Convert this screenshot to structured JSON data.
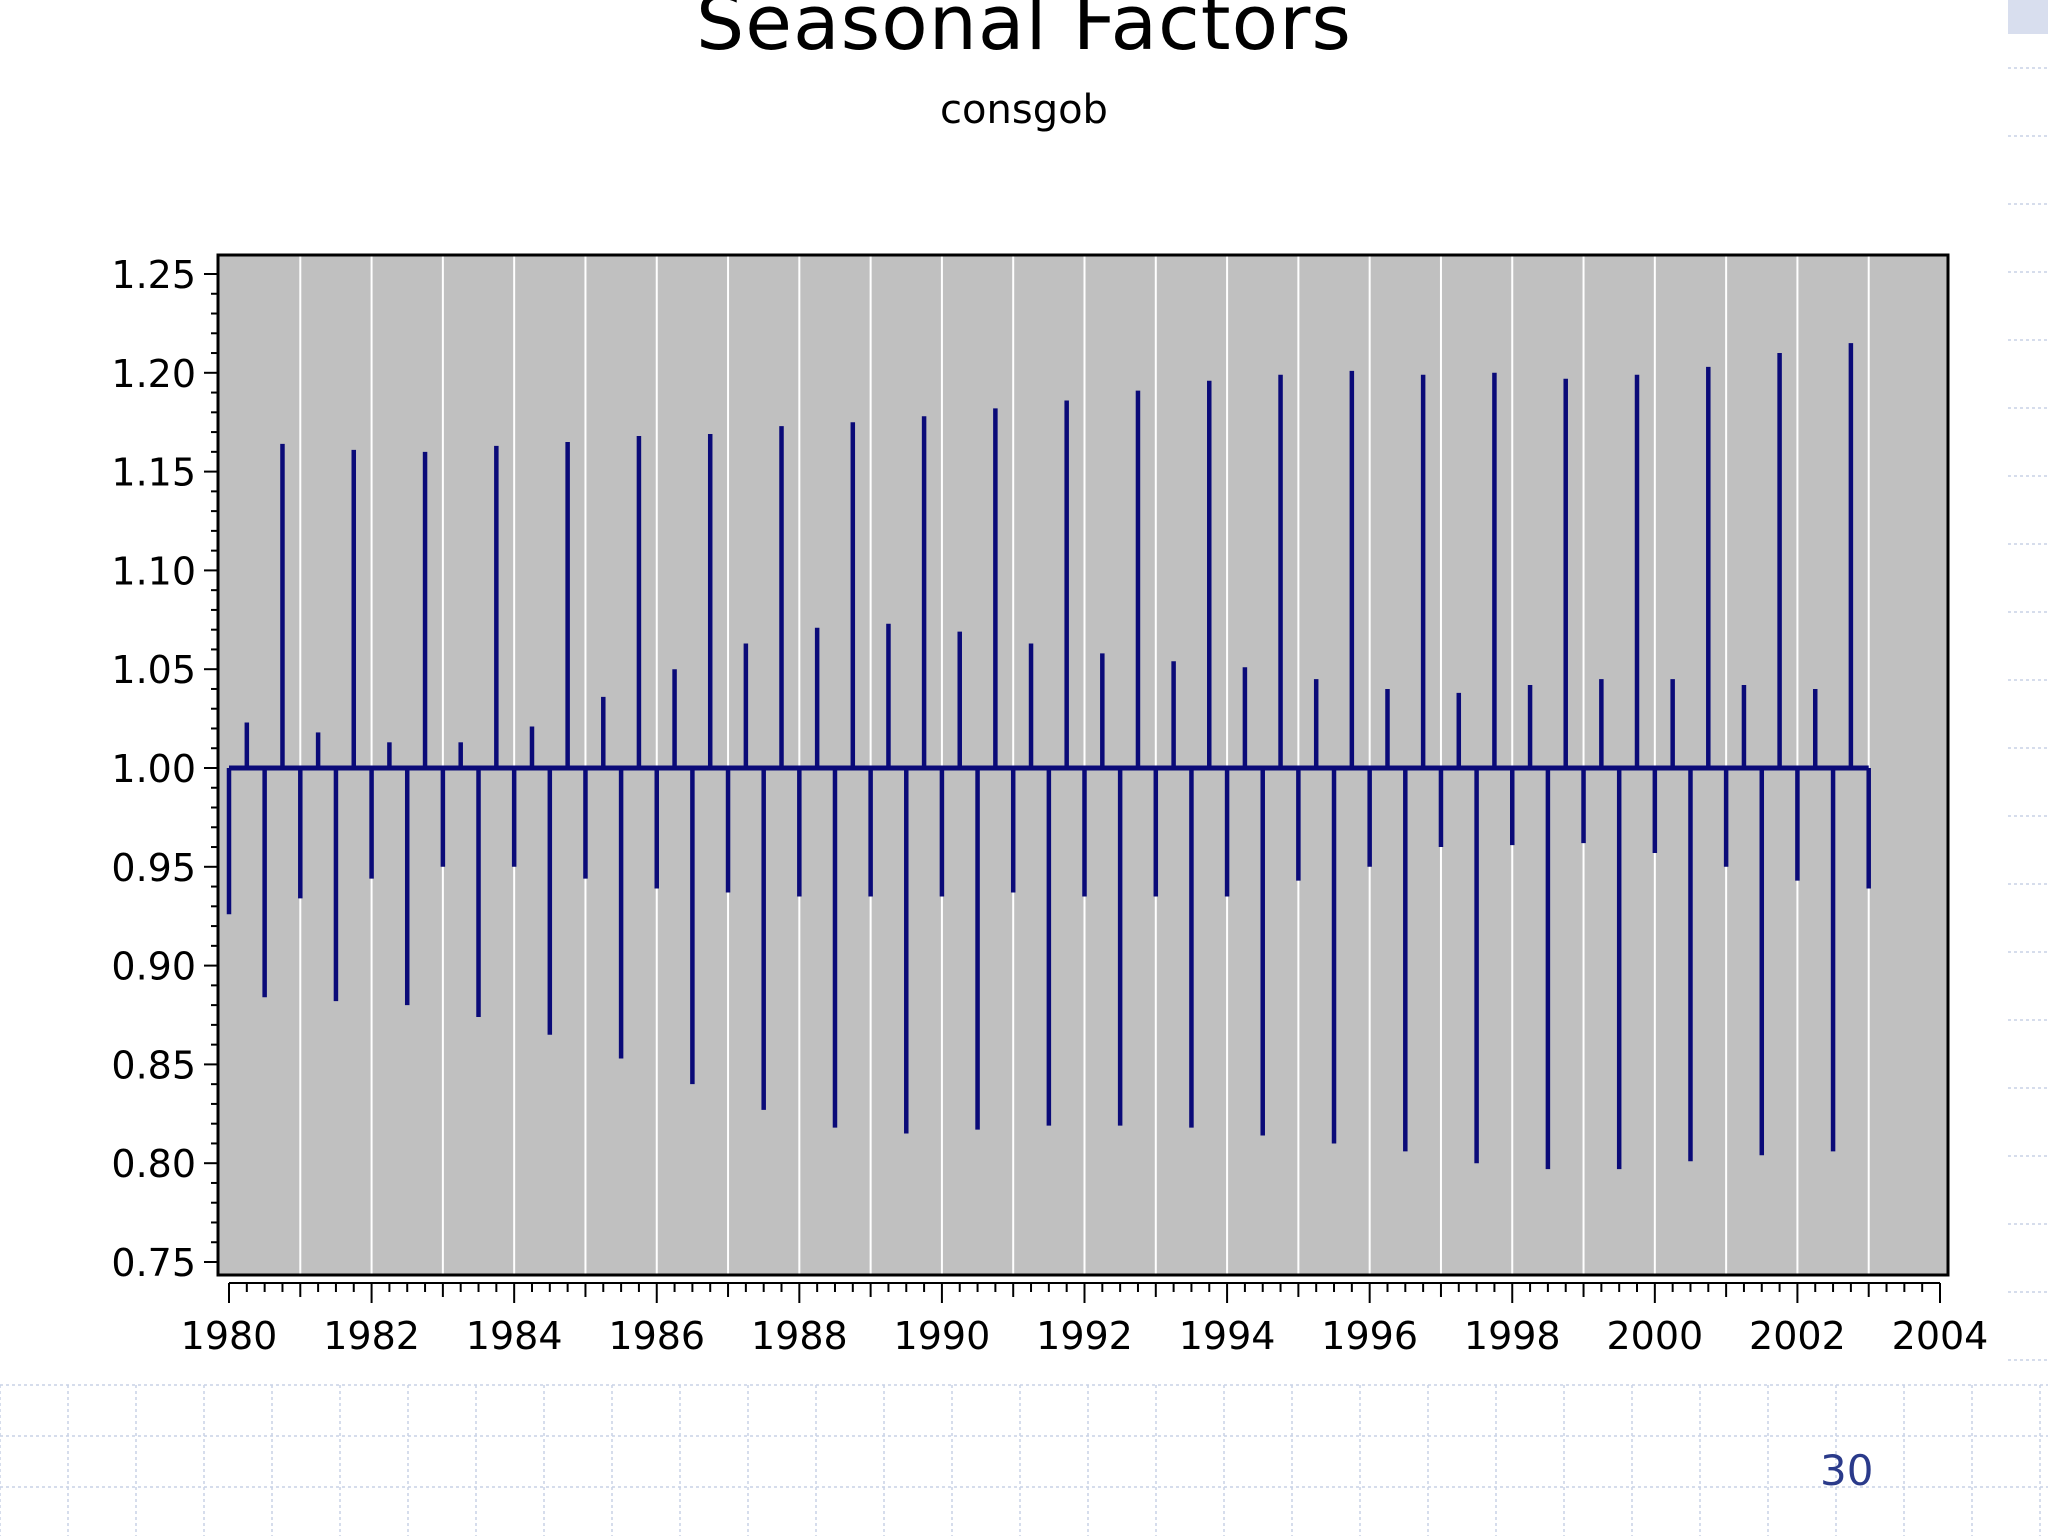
{
  "page": {
    "number": "30"
  },
  "colors": {
    "plot_bg": "#c0c0c0",
    "series": "#0a0a78",
    "grid": "#ffffff",
    "page_number": "#2a3a8a"
  },
  "chart_data": {
    "type": "bar",
    "title": "Seasonal Factors",
    "subtitle": "consgob",
    "xlabel": "",
    "ylabel": "",
    "baseline": 1.0,
    "xlim": [
      1980,
      2004
    ],
    "ylim": [
      0.75,
      1.25
    ],
    "grid": true,
    "x_ticks": [
      "1980",
      "1982",
      "1984",
      "1986",
      "1988",
      "1990",
      "1992",
      "1994",
      "1996",
      "1998",
      "2000",
      "2002",
      "2004"
    ],
    "y_ticks": [
      "0.75",
      "0.80",
      "0.85",
      "0.90",
      "0.95",
      "1.00",
      "1.05",
      "1.10",
      "1.15",
      "1.20",
      "1.25"
    ],
    "frequency": "quarterly",
    "start": "1980Q1",
    "values": [
      0.926,
      1.023,
      0.884,
      1.164,
      0.934,
      1.018,
      0.882,
      1.161,
      0.944,
      1.013,
      0.88,
      1.16,
      0.95,
      1.013,
      0.874,
      1.163,
      0.95,
      1.021,
      0.865,
      1.165,
      0.944,
      1.036,
      0.853,
      1.168,
      0.939,
      1.05,
      0.84,
      1.169,
      0.937,
      1.063,
      0.827,
      1.173,
      0.935,
      1.071,
      0.818,
      1.175,
      0.935,
      1.073,
      0.815,
      1.178,
      0.935,
      1.069,
      0.817,
      1.182,
      0.937,
      1.063,
      0.819,
      1.186,
      0.935,
      1.058,
      0.819,
      1.191,
      0.935,
      1.054,
      0.818,
      1.196,
      0.935,
      1.051,
      0.814,
      1.199,
      0.943,
      1.045,
      0.81,
      1.201,
      0.95,
      1.04,
      0.806,
      1.199,
      0.96,
      1.038,
      0.8,
      1.2,
      0.961,
      1.042,
      0.797,
      1.197,
      0.962,
      1.045,
      0.797,
      1.199,
      0.957,
      1.045,
      0.801,
      1.203,
      0.95,
      1.042,
      0.804,
      1.21,
      0.943,
      1.04,
      0.806,
      1.215,
      0.939
    ]
  }
}
